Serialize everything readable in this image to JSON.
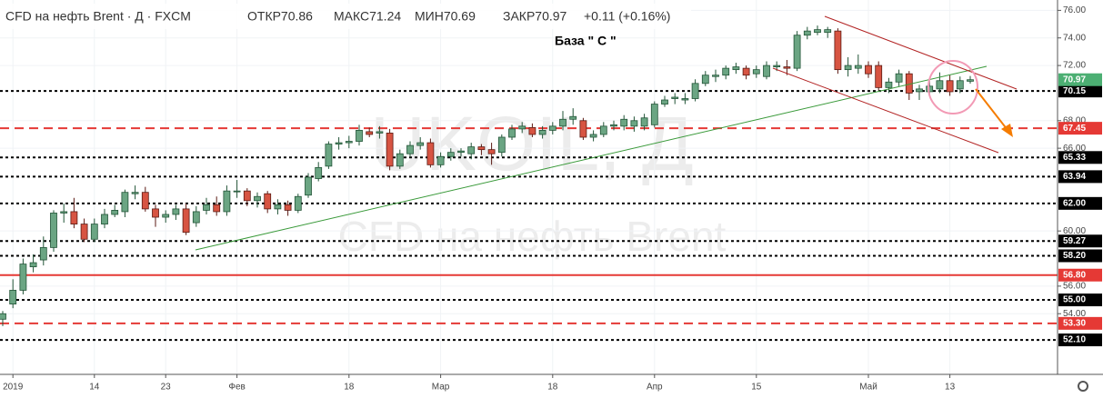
{
  "chart_data": {
    "type": "candlestick",
    "title": "CFD на нефть Brent · Д · FXCM",
    "ohlc_info": [
      "ОТКР70.86",
      "МАКС71.24",
      "МИН70.69",
      "ЗАКР70.97",
      "+0.11 (+0.16%)"
    ],
    "annotation": "База \" С \"",
    "watermark": [
      "UKOIL, Д",
      "CFD на нефть Brent"
    ],
    "categories": [
      null,
      "2019",
      null,
      null,
      null,
      null,
      null,
      null,
      null,
      "14",
      null,
      null,
      null,
      null,
      null,
      null,
      "23",
      null,
      null,
      null,
      null,
      null,
      null,
      "Фев",
      null,
      null,
      null,
      null,
      null,
      null,
      null,
      null,
      null,
      null,
      "18",
      null,
      null,
      null,
      null,
      null,
      null,
      null,
      null,
      "Мар",
      null,
      null,
      null,
      null,
      null,
      null,
      null,
      null,
      null,
      null,
      "18",
      null,
      null,
      null,
      null,
      null,
      null,
      null,
      null,
      null,
      "Апр",
      null,
      null,
      null,
      null,
      null,
      null,
      null,
      null,
      null,
      "15",
      null,
      null,
      null,
      null,
      null,
      null,
      null,
      null,
      null,
      null,
      "Май",
      null,
      null,
      null,
      null,
      null,
      null,
      null,
      "13",
      null,
      null
    ],
    "open": [
      53.6,
      54.7,
      55.7,
      57.4,
      57.9,
      58.8,
      61.3,
      61.4,
      60.5,
      59.4,
      60.5,
      61.2,
      61.4,
      62.7,
      62.8,
      61.6,
      61.0,
      61.2,
      61.6,
      60.6,
      61.5,
      61.9,
      61.4,
      62.9,
      62.9,
      62.2,
      62.7,
      61.6,
      61.9,
      61.5,
      62.6,
      63.8,
      64.7,
      66.3,
      66.4,
      66.5,
      67.2,
      67.1,
      67.1,
      64.7,
      65.6,
      66.2,
      66.4,
      64.8,
      65.4,
      65.7,
      65.6,
      66.1,
      65.9,
      65.7,
      66.8,
      67.4,
      67.5,
      67.0,
      67.3,
      67.6,
      68.1,
      68.0,
      66.8,
      67.0,
      67.6,
      67.6,
      67.6,
      67.6,
      67.7,
      69.2,
      69.6,
      69.5,
      69.6,
      70.7,
      71.2,
      71.3,
      71.7,
      71.8,
      71.4,
      71.2,
      71.9,
      71.9,
      71.8,
      74.2,
      74.4,
      74.4,
      74.5,
      71.7,
      71.8,
      72.0,
      72.0,
      70.4,
      70.8,
      71.4,
      70.1,
      70.1,
      70.3,
      70.9,
      70.3,
      70.86
    ],
    "high": [
      54.2,
      56.5,
      58.0,
      58.3,
      59.6,
      61.5,
      62.0,
      62.4,
      60.9,
      60.9,
      61.6,
      61.9,
      63.0,
      63.3,
      63.2,
      61.9,
      61.5,
      61.9,
      62.0,
      61.8,
      62.4,
      62.5,
      63.3,
      63.7,
      63.1,
      62.8,
      62.9,
      62.3,
      62.2,
      62.7,
      64.2,
      65.0,
      66.5,
      66.8,
      66.9,
      67.7,
      67.5,
      67.6,
      67.4,
      65.9,
      66.5,
      66.8,
      66.7,
      65.7,
      66.0,
      66.0,
      66.4,
      66.3,
      66.4,
      67.0,
      67.7,
      67.9,
      67.8,
      67.6,
      67.9,
      68.7,
      68.9,
      68.2,
      67.3,
      67.9,
      68.0,
      68.4,
      68.3,
      68.5,
      69.4,
      69.8,
      70.0,
      70.0,
      71.0,
      71.6,
      71.7,
      72.0,
      72.2,
      72.0,
      72.0,
      72.3,
      72.3,
      72.4,
      74.5,
      74.8,
      74.9,
      74.8,
      74.7,
      72.6,
      72.8,
      72.3,
      72.3,
      71.1,
      71.7,
      71.6,
      70.6,
      70.9,
      71.5,
      71.3,
      71.2,
      71.24
    ],
    "low": [
      53.1,
      54.4,
      55.4,
      57.0,
      57.5,
      58.5,
      60.6,
      60.2,
      59.2,
      59.2,
      60.2,
      61.0,
      61.0,
      62.3,
      61.4,
      60.3,
      60.6,
      60.8,
      59.7,
      60.3,
      61.2,
      61.1,
      61.1,
      62.4,
      61.8,
      61.7,
      61.3,
      61.2,
      61.1,
      61.3,
      62.4,
      63.6,
      64.5,
      65.9,
      66.0,
      66.2,
      66.8,
      66.7,
      64.4,
      64.5,
      65.4,
      65.9,
      64.6,
      64.6,
      65.1,
      65.4,
      65.2,
      65.5,
      64.8,
      65.4,
      66.6,
      67.1,
      66.8,
      66.7,
      67.0,
      67.3,
      67.7,
      66.6,
      66.5,
      66.8,
      67.3,
      67.3,
      67.2,
      67.3,
      67.5,
      69.0,
      69.2,
      69.2,
      69.4,
      70.5,
      70.8,
      71.0,
      71.4,
      71.0,
      71.1,
      71.0,
      71.6,
      71.3,
      71.6,
      73.9,
      74.2,
      74.0,
      71.4,
      71.2,
      71.4,
      71.1,
      70.2,
      70.0,
      70.5,
      69.5,
      69.5,
      69.8,
      70.0,
      69.8,
      70.0,
      70.69
    ],
    "close": [
      54.0,
      55.7,
      57.6,
      57.7,
      58.8,
      61.3,
      61.4,
      60.5,
      59.4,
      60.5,
      61.2,
      61.5,
      62.8,
      62.8,
      61.6,
      61.0,
      61.2,
      61.6,
      59.9,
      61.4,
      61.9,
      61.4,
      62.9,
      62.9,
      62.2,
      62.5,
      61.6,
      61.9,
      61.5,
      62.5,
      63.9,
      64.6,
      66.3,
      66.4,
      66.5,
      67.3,
      67.0,
      67.2,
      64.7,
      65.6,
      66.2,
      66.4,
      64.8,
      65.4,
      65.7,
      65.8,
      66.1,
      65.9,
      65.6,
      66.8,
      67.4,
      67.6,
      67.0,
      67.3,
      67.6,
      68.1,
      68.3,
      66.8,
      67.0,
      67.6,
      67.7,
      68.1,
      68.0,
      68.2,
      69.2,
      69.5,
      69.7,
      69.6,
      70.7,
      71.3,
      71.3,
      71.8,
      71.9,
      71.3,
      71.7,
      72.0,
      72.0,
      71.8,
      74.2,
      74.5,
      74.6,
      74.6,
      71.7,
      72.0,
      72.0,
      71.4,
      70.4,
      70.8,
      71.4,
      70.0,
      70.3,
      70.5,
      70.9,
      70.1,
      70.9,
      70.97
    ],
    "up_color": "#6ba583",
    "down_color": "#d75442",
    "last_price": 70.97,
    "last_price_color": "#4caf73",
    "levels": [
      {
        "value": 70.15,
        "color": "#000000",
        "style": "dotted"
      },
      {
        "value": 67.45,
        "color": "#e53935",
        "style": "dashed"
      },
      {
        "value": 65.33,
        "color": "#000000",
        "style": "dotted"
      },
      {
        "value": 63.94,
        "color": "#000000",
        "style": "dotted"
      },
      {
        "value": 62,
        "label": "62.00",
        "color": "#000000",
        "style": "dotted"
      },
      {
        "value": 59.27,
        "color": "#000000",
        "style": "dotted"
      },
      {
        "value": 58.2,
        "label": "58.20",
        "color": "#000000",
        "style": "dotted"
      },
      {
        "value": 56.8,
        "label": "56.80",
        "color": "#e53935",
        "style": "solid"
      },
      {
        "value": 55,
        "label": "55.00",
        "color": "#000000",
        "style": "dotted"
      },
      {
        "value": 53.3,
        "label": "53.30",
        "color": "#e53935",
        "style": "dashed"
      },
      {
        "value": 52.1,
        "label": "52.10",
        "color": "#000000",
        "style": "dotted"
      }
    ],
    "ylim": [
      49.6,
      76.75
    ],
    "yticks": [
      {
        "value": 54,
        "label": "54.00"
      },
      {
        "value": 56,
        "label": "56.00"
      },
      {
        "value": 60,
        "label": "60.00"
      },
      {
        "value": 66,
        "label": "66.00"
      },
      {
        "value": 68,
        "label": "68.00"
      },
      {
        "value": 72,
        "label": "72.00"
      },
      {
        "value": 74,
        "label": "74.00"
      },
      {
        "value": 76,
        "label": "76.00"
      }
    ],
    "grid": true
  }
}
